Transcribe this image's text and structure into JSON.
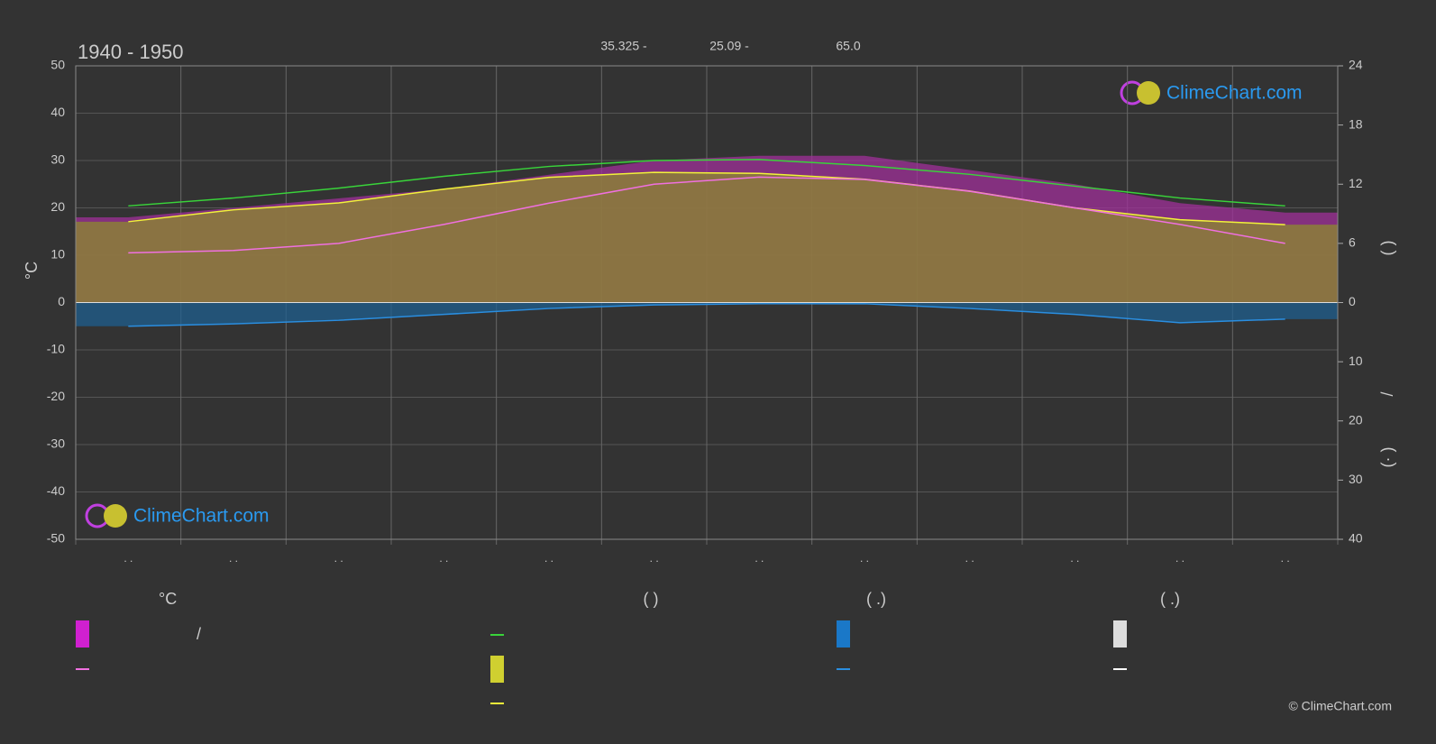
{
  "header": {
    "title": "1940 - 1950",
    "stats": [
      "35.325 -",
      "25.09 -",
      "65.0"
    ]
  },
  "logo": "ClimeChart.com",
  "copyright": "© ClimeChart.com",
  "chart_data": {
    "type": "line",
    "ylabel": "°C",
    "y2label": "(        )",
    "y2sep": "/",
    "y3label": "(·   )",
    "categories": [
      ". .",
      ". .",
      ". .",
      ". .",
      ". .",
      ". .",
      ". .",
      ". .",
      ". .",
      ". .",
      ". .",
      ". ."
    ],
    "ylim": [
      -50,
      50
    ],
    "yticks": [
      -50,
      -40,
      -30,
      -20,
      -10,
      0,
      10,
      20,
      30,
      40,
      50
    ],
    "y2lim": [
      0,
      24
    ],
    "y2ticks": [
      0,
      6,
      12,
      18,
      24
    ],
    "y3lim": [
      0,
      40
    ],
    "y3ticks": [
      10,
      20,
      30,
      40
    ],
    "grid": true,
    "series": [
      {
        "kind": "area",
        "axis": "y",
        "color": "#a0309a",
        "values": [
          18,
          20,
          22,
          24,
          27,
          30,
          31,
          31,
          28,
          25,
          21,
          19
        ]
      },
      {
        "kind": "area",
        "axis": "y2",
        "color": "#8c8a2e",
        "values": [
          8.2,
          9.4,
          10.1,
          11.5,
          12.7,
          13.2,
          13.1,
          12.5,
          11.3,
          9.6,
          8.4,
          7.9
        ]
      },
      {
        "kind": "area",
        "axis": "y3",
        "color": "#1f5f8f",
        "values": [
          4.0,
          3.6,
          3.0,
          2.0,
          1.0,
          0.4,
          0.2,
          0.2,
          1.0,
          2.0,
          3.4,
          2.8
        ]
      },
      {
        "kind": "line",
        "axis": "y2",
        "color": "#39d43a",
        "values": [
          9.8,
          10.6,
          11.6,
          12.8,
          13.8,
          14.4,
          14.5,
          13.9,
          13.0,
          11.8,
          10.6,
          9.8
        ]
      },
      {
        "kind": "line",
        "axis": "y2",
        "color": "#f2f23a",
        "values": [
          8.2,
          9.4,
          10.1,
          11.5,
          12.7,
          13.2,
          13.1,
          12.5,
          11.3,
          9.6,
          8.4,
          7.9
        ]
      },
      {
        "kind": "line",
        "axis": "y",
        "color": "#f070e0",
        "values": [
          10.5,
          11,
          12.5,
          16.5,
          21,
          25,
          26.5,
          26,
          23.5,
          20,
          16.5,
          12.5
        ]
      },
      {
        "kind": "line",
        "axis": "y3",
        "color": "#2a8ee0",
        "values": [
          4.0,
          3.6,
          3.0,
          2.0,
          1.0,
          0.4,
          0.2,
          0.2,
          1.0,
          2.0,
          3.4,
          2.8
        ]
      }
    ]
  },
  "legend": {
    "headers": [
      "°C",
      "(           )",
      "(   .)",
      "(   .)"
    ],
    "separator": "/"
  }
}
